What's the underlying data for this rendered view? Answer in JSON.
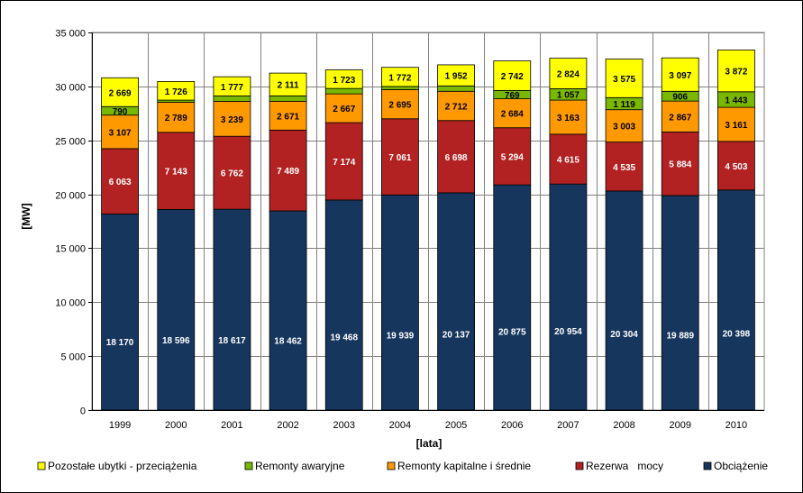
{
  "chart_data": {
    "type": "bar",
    "stacked": true,
    "title": "",
    "xlabel": "[lata]",
    "ylabel": "[MW]",
    "ylim": [
      0,
      35000
    ],
    "yticks": [
      0,
      5000,
      10000,
      15000,
      20000,
      25000,
      30000,
      35000
    ],
    "ytick_labels": [
      "0",
      "5 000",
      "10 000",
      "15 000",
      "20 000",
      "25 000",
      "30 000",
      "35 000"
    ],
    "grid": true,
    "legend_position": "bottom",
    "categories": [
      "1999",
      "2000",
      "2001",
      "2002",
      "2003",
      "2004",
      "2005",
      "2006",
      "2007",
      "2008",
      "2009",
      "2010"
    ],
    "series": [
      {
        "name": "Obciążenie",
        "color": "#17365d",
        "label_color": "#ffffff",
        "values": [
          18170,
          18596,
          18617,
          18462,
          19468,
          19939,
          20137,
          20875,
          20954,
          20304,
          19889,
          20398
        ],
        "labels": [
          "18 170",
          "18 596",
          "18 617",
          "18 462",
          "19 468",
          "19 939",
          "20 137",
          "20 875",
          "20 954",
          "20 304",
          "19 889",
          "20 398"
        ]
      },
      {
        "name": "Rezerwa   mocy",
        "color": "#b22222",
        "label_color": "#ffffff",
        "values": [
          6063,
          7143,
          6762,
          7489,
          7174,
          7061,
          6698,
          5294,
          4615,
          4535,
          5884,
          4503
        ],
        "labels": [
          "6 063",
          "7 143",
          "6 762",
          "7 489",
          "7 174",
          "7 061",
          "6 698",
          "5 294",
          "4 615",
          "4 535",
          "5 884",
          "4 503"
        ]
      },
      {
        "name": "Remonty kapitalne i średnie",
        "color": "#ff9900",
        "label_color": "#000000",
        "values": [
          3107,
          2789,
          3239,
          2671,
          2667,
          2695,
          2712,
          2684,
          3163,
          3003,
          2867,
          3161
        ],
        "labels": [
          "3 107",
          "2 789",
          "3 239",
          "2 671",
          "2 667",
          "2 695",
          "2 712",
          "2 684",
          "3 163",
          "3 003",
          "2 867",
          "3 161"
        ]
      },
      {
        "name": "Remonty awaryjne",
        "color": "#7ab800",
        "label_color": "#000000",
        "values": [
          790,
          200,
          500,
          500,
          500,
          300,
          500,
          769,
          1057,
          1119,
          906,
          1443
        ],
        "labels": [
          "790",
          "",
          "",
          "",
          "",
          "",
          "",
          "769",
          "1 057",
          "1 119",
          "906",
          "1 443"
        ]
      },
      {
        "name": "Pozostałe ubytki - przeciążenia",
        "color": "#ffff00",
        "label_color": "#000000",
        "values": [
          2669,
          1726,
          1777,
          2111,
          1723,
          1772,
          1952,
          2742,
          2824,
          3575,
          3097,
          3872
        ],
        "labels": [
          "2 669",
          "1 726",
          "1 777",
          "2 111",
          "1 723",
          "1 772",
          "1 952",
          "2 742",
          "2 824",
          "3 575",
          "3 097",
          "3 872"
        ]
      }
    ]
  }
}
